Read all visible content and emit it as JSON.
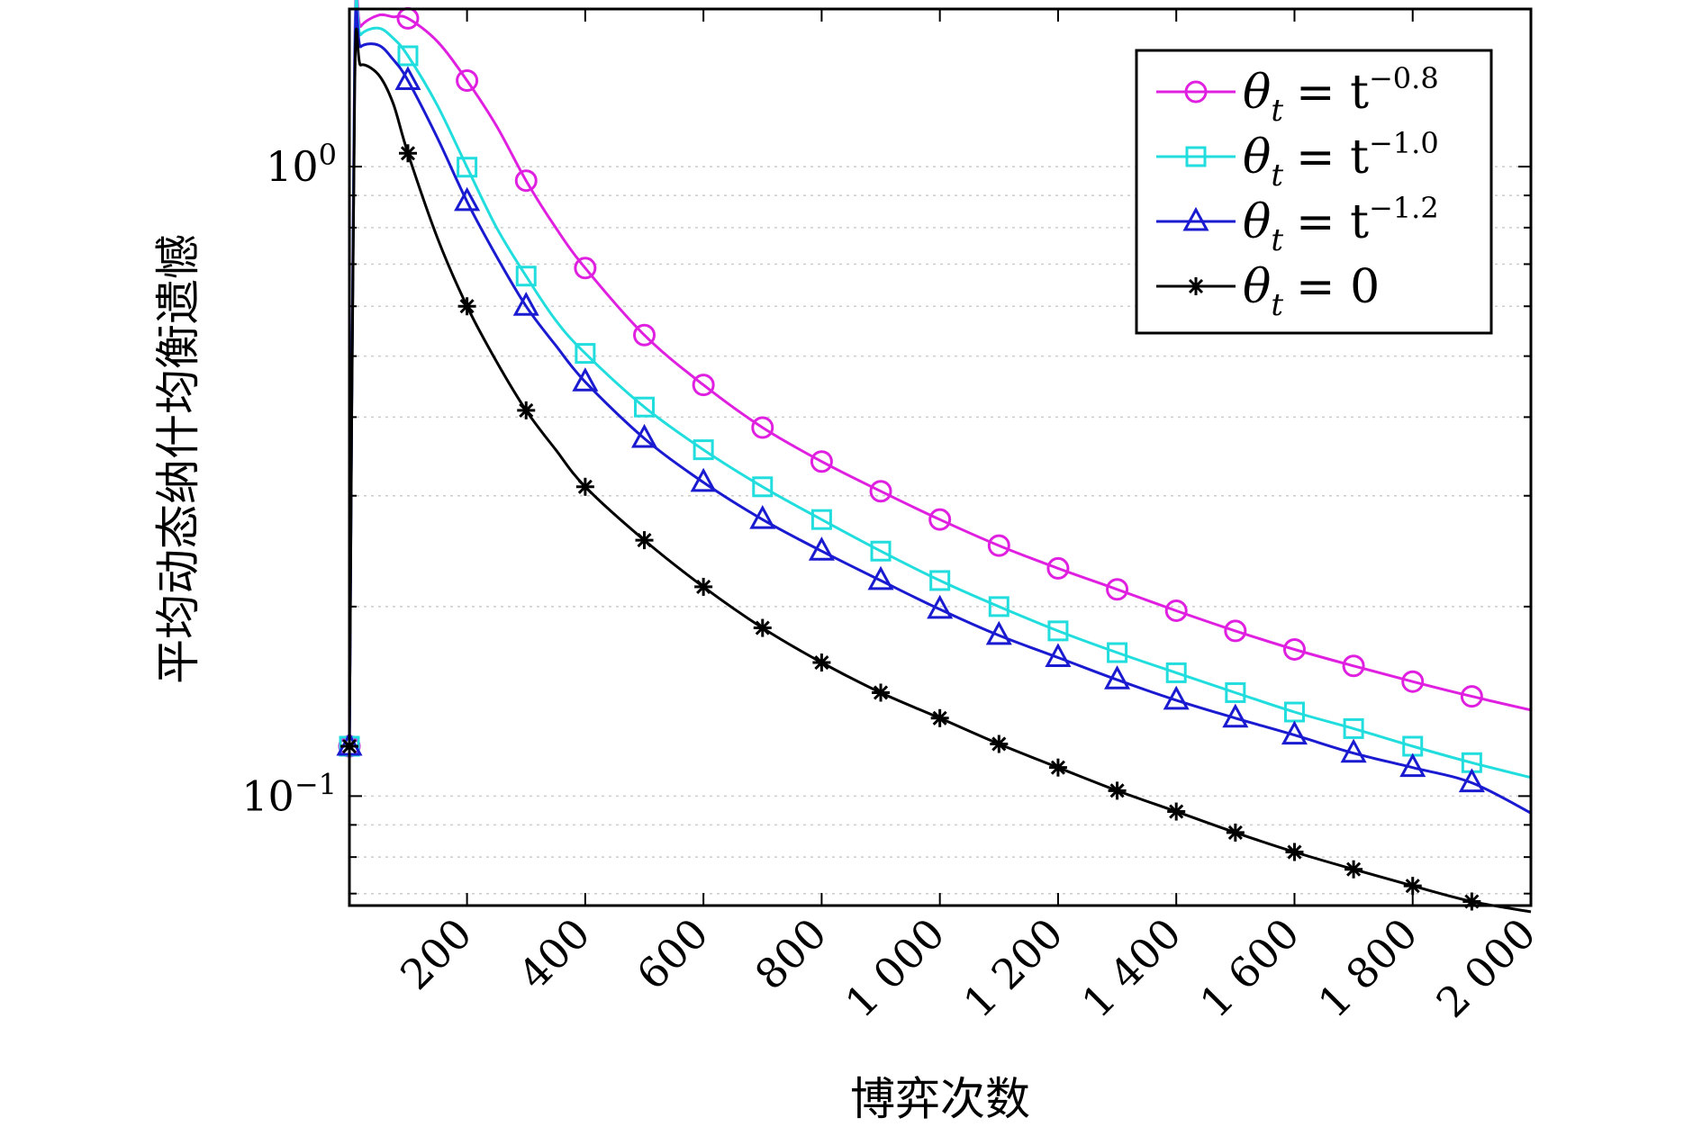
{
  "chart_data": {
    "type": "line",
    "title": "",
    "xlabel": "博弈次数",
    "ylabel": "平均动态纳什均衡遗憾",
    "xscale": "linear",
    "yscale": "log",
    "xlim": [
      1,
      2000
    ],
    "ylim": [
      0.067,
      1.78
    ],
    "xticks": [
      200,
      400,
      600,
      800,
      1000,
      1200,
      1400,
      1600,
      1800,
      2000
    ],
    "xtick_labels": [
      "200",
      "400",
      "600",
      "800",
      "1 000",
      "1 200",
      "1 400",
      "1 600",
      "1 800",
      "2 000"
    ],
    "yticks": [
      {
        "value": 1.0,
        "base": "10",
        "exp": "0"
      },
      {
        "value": 0.1,
        "base": "10",
        "exp": "−1"
      }
    ],
    "grid": "y-dotted",
    "legend_position": "top-right",
    "series": [
      {
        "name": "θt = t^-0.8",
        "legend": {
          "lhs": "θ",
          "sub": "t",
          "rhs": "= t",
          "sup": "−0.8"
        },
        "color": "#e020e0",
        "marker": "circle",
        "x": [
          1,
          10,
          20,
          50,
          75,
          100,
          150,
          200,
          250,
          300,
          350,
          400,
          500,
          600,
          700,
          800,
          900,
          1000,
          1100,
          1200,
          1300,
          1400,
          1500,
          1600,
          1700,
          1800,
          1900,
          2000
        ],
        "y": [
          0.12,
          1.55,
          1.67,
          1.74,
          1.73,
          1.72,
          1.58,
          1.37,
          1.16,
          0.95,
          0.8,
          0.69,
          0.54,
          0.45,
          0.385,
          0.34,
          0.305,
          0.275,
          0.25,
          0.23,
          0.213,
          0.197,
          0.183,
          0.171,
          0.161,
          0.152,
          0.144,
          0.137
        ],
        "marker_x": [
          1,
          100,
          200,
          300,
          400,
          500,
          600,
          700,
          800,
          900,
          1000,
          1100,
          1200,
          1300,
          1400,
          1500,
          1600,
          1700,
          1800,
          1900
        ],
        "marker_y": [
          0.12,
          1.72,
          1.37,
          0.95,
          0.69,
          0.54,
          0.45,
          0.385,
          0.34,
          0.305,
          0.275,
          0.25,
          0.23,
          0.213,
          0.197,
          0.183,
          0.171,
          0.161,
          0.152,
          0.144
        ]
      },
      {
        "name": "θt = t^-1.0",
        "legend": {
          "lhs": "θ",
          "sub": "t",
          "rhs": "= t",
          "sup": "−1.0"
        },
        "color": "#22dddd",
        "marker": "square",
        "x": [
          1,
          10,
          20,
          50,
          75,
          100,
          150,
          200,
          250,
          300,
          350,
          400,
          500,
          600,
          700,
          800,
          900,
          1000,
          1100,
          1200,
          1300,
          1400,
          1500,
          1600,
          1700,
          1800,
          1900,
          2000
        ],
        "y": [
          0.12,
          1.5,
          1.62,
          1.66,
          1.6,
          1.5,
          1.25,
          0.998,
          0.8,
          0.67,
          0.57,
          0.505,
          0.415,
          0.355,
          0.31,
          0.275,
          0.245,
          0.22,
          0.2,
          0.183,
          0.169,
          0.157,
          0.146,
          0.136,
          0.128,
          0.12,
          0.113,
          0.107
        ],
        "marker_x": [
          1,
          100,
          200,
          300,
          400,
          500,
          600,
          700,
          800,
          900,
          1000,
          1100,
          1200,
          1300,
          1400,
          1500,
          1600,
          1700,
          1800,
          1900
        ],
        "marker_y": [
          0.12,
          1.5,
          0.998,
          0.67,
          0.505,
          0.415,
          0.355,
          0.31,
          0.275,
          0.245,
          0.22,
          0.2,
          0.183,
          0.169,
          0.157,
          0.146,
          0.136,
          0.128,
          0.12,
          0.113
        ]
      },
      {
        "name": "θt = t^-1.2",
        "legend": {
          "lhs": "θ",
          "sub": "t",
          "rhs": "= t",
          "sup": "−1.2"
        },
        "color": "#1a1ad0",
        "marker": "triangle",
        "x": [
          1,
          10,
          20,
          50,
          75,
          100,
          150,
          200,
          250,
          300,
          350,
          400,
          500,
          600,
          700,
          800,
          900,
          1000,
          1100,
          1200,
          1300,
          1400,
          1500,
          1600,
          1700,
          1800,
          1900,
          2000
        ],
        "y": [
          0.12,
          1.45,
          1.55,
          1.56,
          1.48,
          1.37,
          1.11,
          0.88,
          0.72,
          0.6,
          0.52,
          0.455,
          0.37,
          0.315,
          0.275,
          0.245,
          0.22,
          0.198,
          0.18,
          0.166,
          0.153,
          0.142,
          0.133,
          0.125,
          0.117,
          0.111,
          0.105,
          0.094
        ],
        "marker_x": [
          1,
          100,
          200,
          300,
          400,
          500,
          600,
          700,
          800,
          900,
          1000,
          1100,
          1200,
          1300,
          1400,
          1500,
          1600,
          1700,
          1800,
          1900
        ],
        "marker_y": [
          0.12,
          1.37,
          0.88,
          0.6,
          0.455,
          0.37,
          0.315,
          0.275,
          0.245,
          0.22,
          0.198,
          0.18,
          0.166,
          0.153,
          0.142,
          0.133,
          0.125,
          0.117,
          0.111,
          0.105
        ]
      },
      {
        "name": "θt = 0",
        "legend": {
          "lhs": "θ",
          "sub": "t",
          "rhs": "= 0",
          "sup": ""
        },
        "color": "#000000",
        "marker": "asterisk",
        "x": [
          1,
          10,
          20,
          50,
          75,
          100,
          150,
          200,
          250,
          300,
          350,
          400,
          500,
          600,
          700,
          800,
          900,
          1000,
          1100,
          1200,
          1300,
          1400,
          1500,
          1600,
          1700,
          1800,
          1900,
          2000
        ],
        "y": [
          0.12,
          1.35,
          1.45,
          1.4,
          1.26,
          1.05,
          0.77,
          0.6,
          0.49,
          0.41,
          0.355,
          0.31,
          0.255,
          0.215,
          0.185,
          0.163,
          0.146,
          0.133,
          0.121,
          0.111,
          0.102,
          0.0945,
          0.0875,
          0.0815,
          0.0765,
          0.072,
          0.068,
          0.0655
        ],
        "marker_x": [
          1,
          100,
          200,
          300,
          400,
          500,
          600,
          700,
          800,
          900,
          1000,
          1100,
          1200,
          1300,
          1400,
          1500,
          1600,
          1700,
          1800,
          1900
        ],
        "marker_y": [
          0.12,
          1.05,
          0.6,
          0.41,
          0.31,
          0.255,
          0.215,
          0.185,
          0.163,
          0.146,
          0.133,
          0.121,
          0.111,
          0.102,
          0.0945,
          0.0875,
          0.0815,
          0.0765,
          0.072,
          0.068
        ]
      }
    ]
  }
}
